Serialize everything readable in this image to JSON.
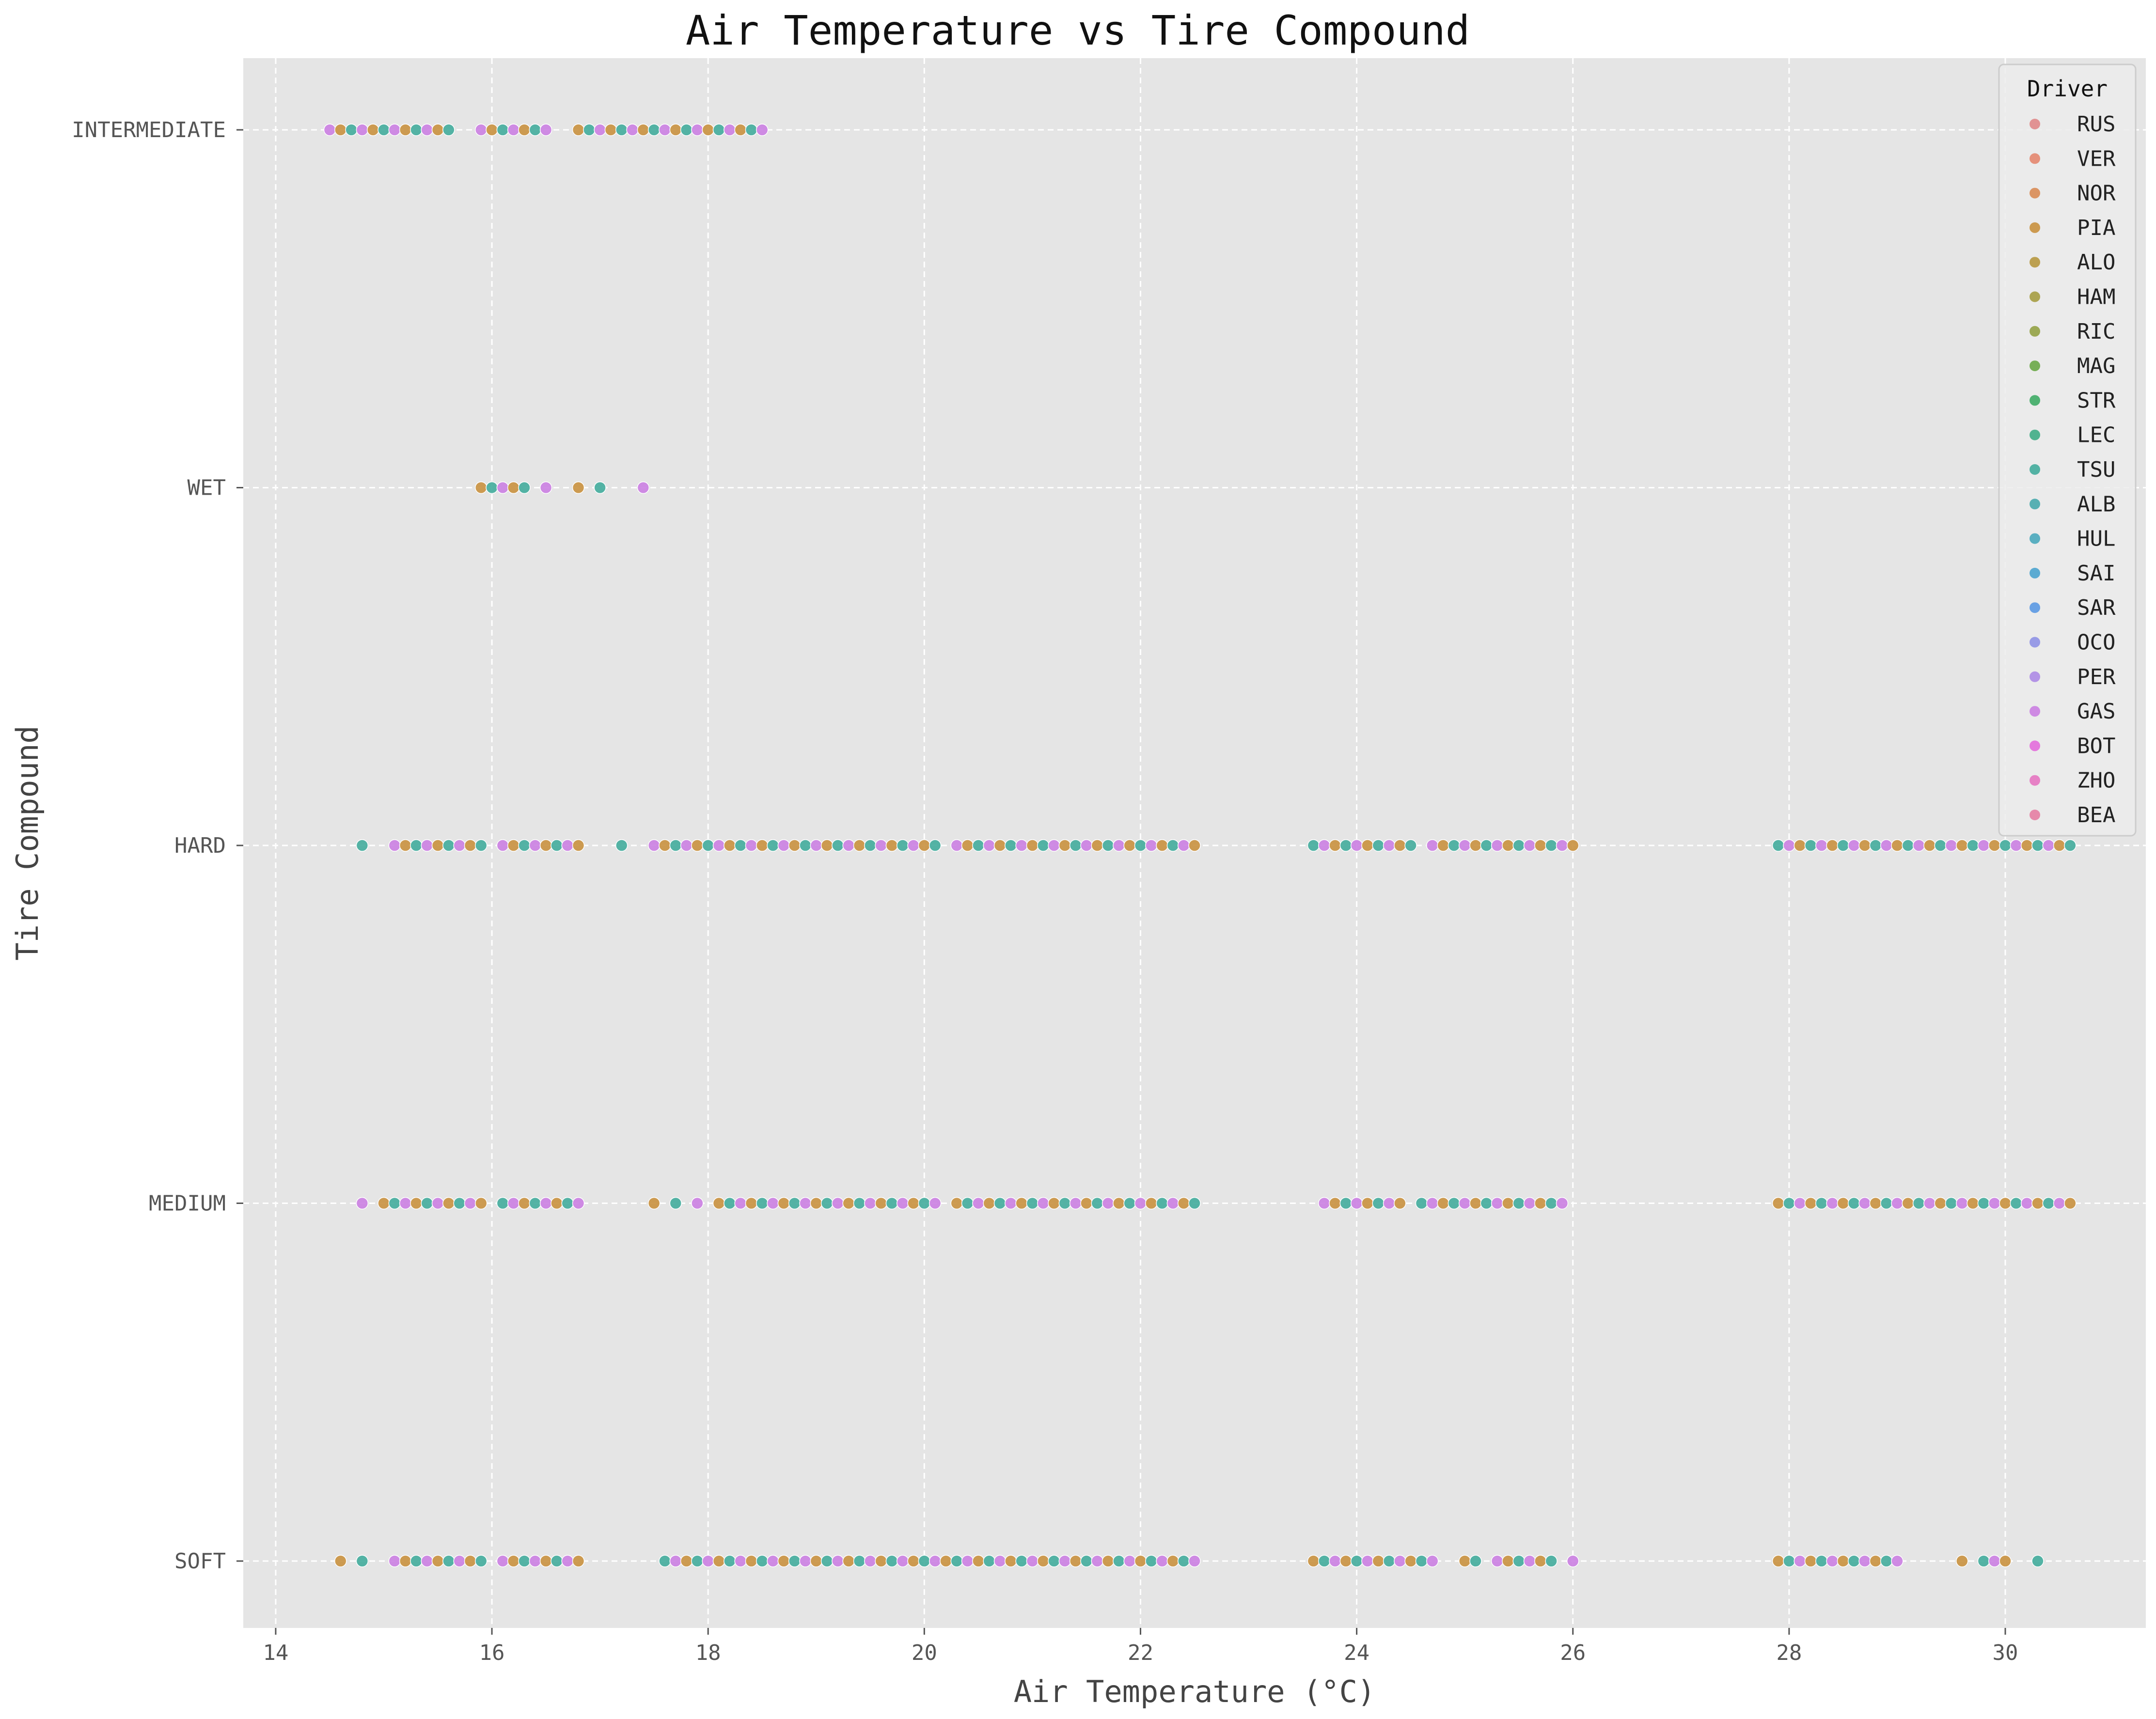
{
  "chart_data": {
    "type": "scatter",
    "title": "Air Temperature vs Tire Compound",
    "xlabel": "Air Temperature (°C)",
    "ylabel": "Tire Compound",
    "xlim": [
      13.7,
      31.3
    ],
    "xticks": [
      14,
      16,
      18,
      20,
      22,
      24,
      26,
      28,
      30
    ],
    "categories": [
      "SOFT",
      "MEDIUM",
      "HARD",
      "WET",
      "INTERMEDIATE"
    ],
    "grid": true,
    "legend": {
      "title": "Driver",
      "placement": "top-right"
    },
    "drivers": [
      {
        "name": "RUS",
        "color": "#e0888a"
      },
      {
        "name": "VER",
        "color": "#e4876f"
      },
      {
        "name": "NOR",
        "color": "#d98c55"
      },
      {
        "name": "PIA",
        "color": "#c9913f"
      },
      {
        "name": "ALO",
        "color": "#b79840"
      },
      {
        "name": "HAM",
        "color": "#a69d42"
      },
      {
        "name": "RIC",
        "color": "#93a245"
      },
      {
        "name": "MAG",
        "color": "#6aa947"
      },
      {
        "name": "STR",
        "color": "#3fac66"
      },
      {
        "name": "LEC",
        "color": "#3fad86"
      },
      {
        "name": "TSU",
        "color": "#43ac9c"
      },
      {
        "name": "ALB",
        "color": "#48aaad"
      },
      {
        "name": "HUL",
        "color": "#4aa8bd"
      },
      {
        "name": "SAI",
        "color": "#4ca4cf"
      },
      {
        "name": "SAR",
        "color": "#5b99e3"
      },
      {
        "name": "OCO",
        "color": "#8f92e6"
      },
      {
        "name": "PER",
        "color": "#ad8ae6"
      },
      {
        "name": "GAS",
        "color": "#cb7fe2"
      },
      {
        "name": "BOT",
        "color": "#e36ddc"
      },
      {
        "name": "ZHO",
        "color": "#e675c1"
      },
      {
        "name": "BEA",
        "color": "#e57ea3"
      }
    ],
    "series": [
      {
        "name": "INTERMEDIATE",
        "ranges": [
          [
            14.5,
            15.6,
            0.1
          ],
          [
            15.9,
            16.5,
            0.1
          ],
          [
            16.8,
            18.5,
            0.1
          ]
        ]
      },
      {
        "name": "WET",
        "ranges": [
          [
            15.9,
            16.3,
            0.1
          ],
          [
            16.5,
            16.5,
            0.1
          ],
          [
            16.8,
            17.0,
            0.2
          ],
          [
            17.4,
            17.4,
            0.1
          ]
        ]
      },
      {
        "name": "HARD",
        "ranges": [
          [
            14.8,
            14.8,
            0.1
          ],
          [
            15.1,
            15.9,
            0.1
          ],
          [
            16.1,
            16.8,
            0.1
          ],
          [
            17.2,
            17.2,
            0.1
          ],
          [
            17.5,
            20.1,
            0.1
          ],
          [
            20.3,
            22.5,
            0.1
          ],
          [
            23.6,
            24.5,
            0.1
          ],
          [
            24.7,
            26.0,
            0.1
          ],
          [
            27.9,
            30.6,
            0.1
          ]
        ]
      },
      {
        "name": "MEDIUM",
        "ranges": [
          [
            14.8,
            14.8,
            0.1
          ],
          [
            15.0,
            15.9,
            0.1
          ],
          [
            16.1,
            16.8,
            0.1
          ],
          [
            17.5,
            17.5,
            0.1
          ],
          [
            17.7,
            17.7,
            0.1
          ],
          [
            17.9,
            17.9,
            0.1
          ],
          [
            18.1,
            20.1,
            0.1
          ],
          [
            20.3,
            22.5,
            0.1
          ],
          [
            23.7,
            24.4,
            0.1
          ],
          [
            24.6,
            25.9,
            0.1
          ],
          [
            27.9,
            30.6,
            0.1
          ]
        ]
      },
      {
        "name": "SOFT",
        "ranges": [
          [
            14.6,
            14.6,
            0.1
          ],
          [
            14.8,
            14.8,
            0.1
          ],
          [
            15.1,
            15.9,
            0.1
          ],
          [
            16.1,
            16.8,
            0.1
          ],
          [
            17.6,
            22.5,
            0.1
          ],
          [
            23.6,
            24.7,
            0.1
          ],
          [
            25.0,
            25.1,
            0.1
          ],
          [
            25.3,
            25.8,
            0.1
          ],
          [
            26.0,
            26.0,
            0.1
          ],
          [
            27.9,
            29.0,
            0.1
          ],
          [
            29.6,
            29.6,
            0.1
          ],
          [
            29.8,
            30.0,
            0.1
          ],
          [
            30.3,
            30.3,
            0.1
          ]
        ]
      }
    ]
  }
}
